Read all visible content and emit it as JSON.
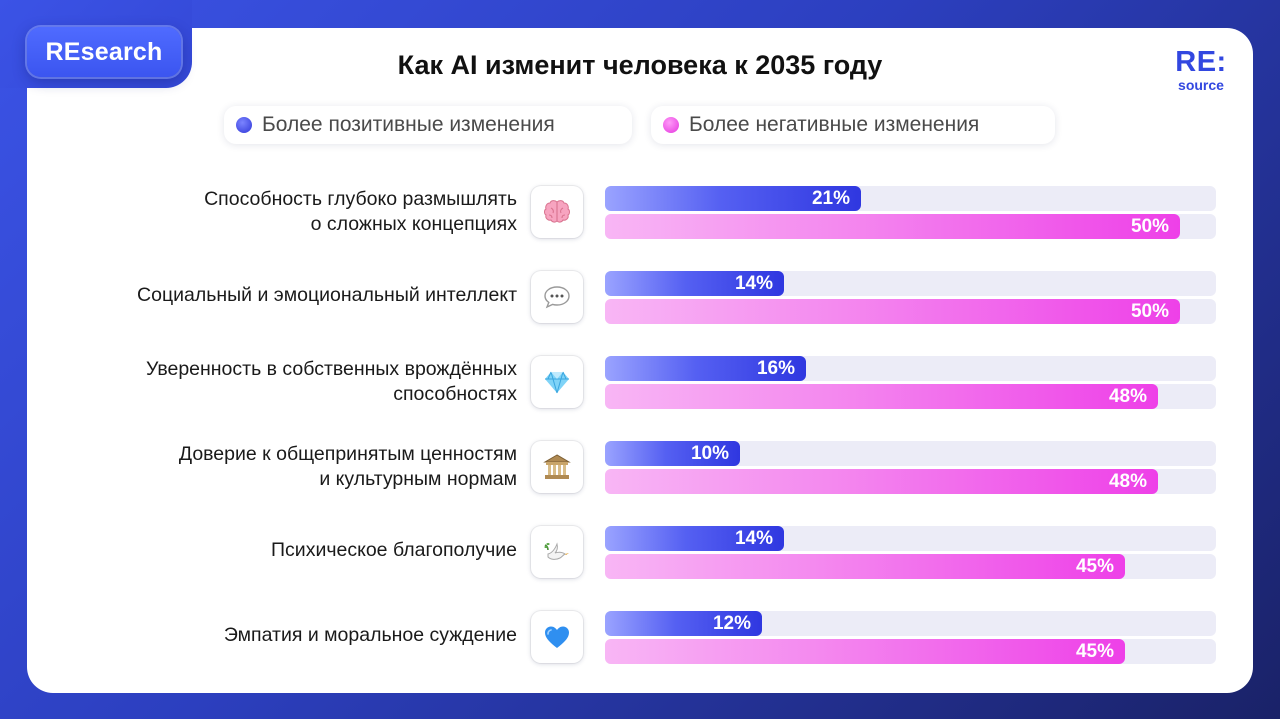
{
  "brand": {
    "label": "REsearch",
    "logo_top": "RE:",
    "logo_bottom": "source"
  },
  "chart_data": {
    "type": "bar",
    "orientation": "horizontal",
    "title": "Как AI изменит человека к 2035 году",
    "value_format": "percent",
    "xlim": [
      0,
      50
    ],
    "legend_placement": "top",
    "categories": [
      "Способность глубоко размышлять\nо сложных концепциях",
      "Социальный и эмоциональный интеллект",
      "Уверенность в собственных врождённых\nспособностях",
      "Доверие к общепринятым ценностям\nи культурным нормам",
      "Психическое благополучие",
      "Эмпатия и моральное суждение"
    ],
    "category_icons": [
      "brain-icon",
      "speech-bubble-icon",
      "gem-icon",
      "classical-building-icon",
      "dove-icon",
      "blue-heart-icon"
    ],
    "series": [
      {
        "name": "Более позитивные изменения",
        "color": "#3a44e6",
        "values": [
          21,
          14,
          16,
          10,
          14,
          12
        ]
      },
      {
        "name": "Более негативные изменения",
        "color": "#ee40e8",
        "values": [
          50,
          50,
          48,
          48,
          45,
          45
        ]
      }
    ]
  }
}
